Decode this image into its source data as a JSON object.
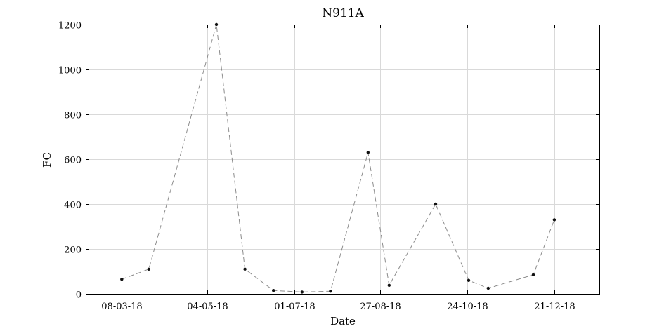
{
  "chart_data": {
    "type": "line",
    "title": "N911A",
    "xlabel": "Date",
    "ylabel": "FC",
    "x_ticks": [
      {
        "date": "2018-03-08",
        "label": "08-03-18"
      },
      {
        "date": "2018-05-04",
        "label": "04-05-18"
      },
      {
        "date": "2018-07-01",
        "label": "01-07-18"
      },
      {
        "date": "2018-08-27",
        "label": "27-08-18"
      },
      {
        "date": "2018-10-24",
        "label": "24-10-18"
      },
      {
        "date": "2018-12-21",
        "label": "21-12-18"
      }
    ],
    "xlim": [
      "2018-02-12",
      "2019-01-20"
    ],
    "ylim": [
      0,
      1200
    ],
    "y_ticks": [
      0,
      200,
      400,
      600,
      800,
      1000,
      1200
    ],
    "grid": true,
    "series": [
      {
        "x": [
          "2018-03-08",
          "2018-03-26",
          "2018-05-10",
          "2018-05-29",
          "2018-06-17",
          "2018-07-06",
          "2018-07-25",
          "2018-08-19",
          "2018-09-02",
          "2018-10-03",
          "2018-10-25",
          "2018-11-07",
          "2018-12-07",
          "2018-12-21"
        ],
        "y": [
          65,
          110,
          1200,
          110,
          15,
          8,
          12,
          630,
          38,
          400,
          60,
          25,
          85,
          330
        ]
      }
    ]
  }
}
